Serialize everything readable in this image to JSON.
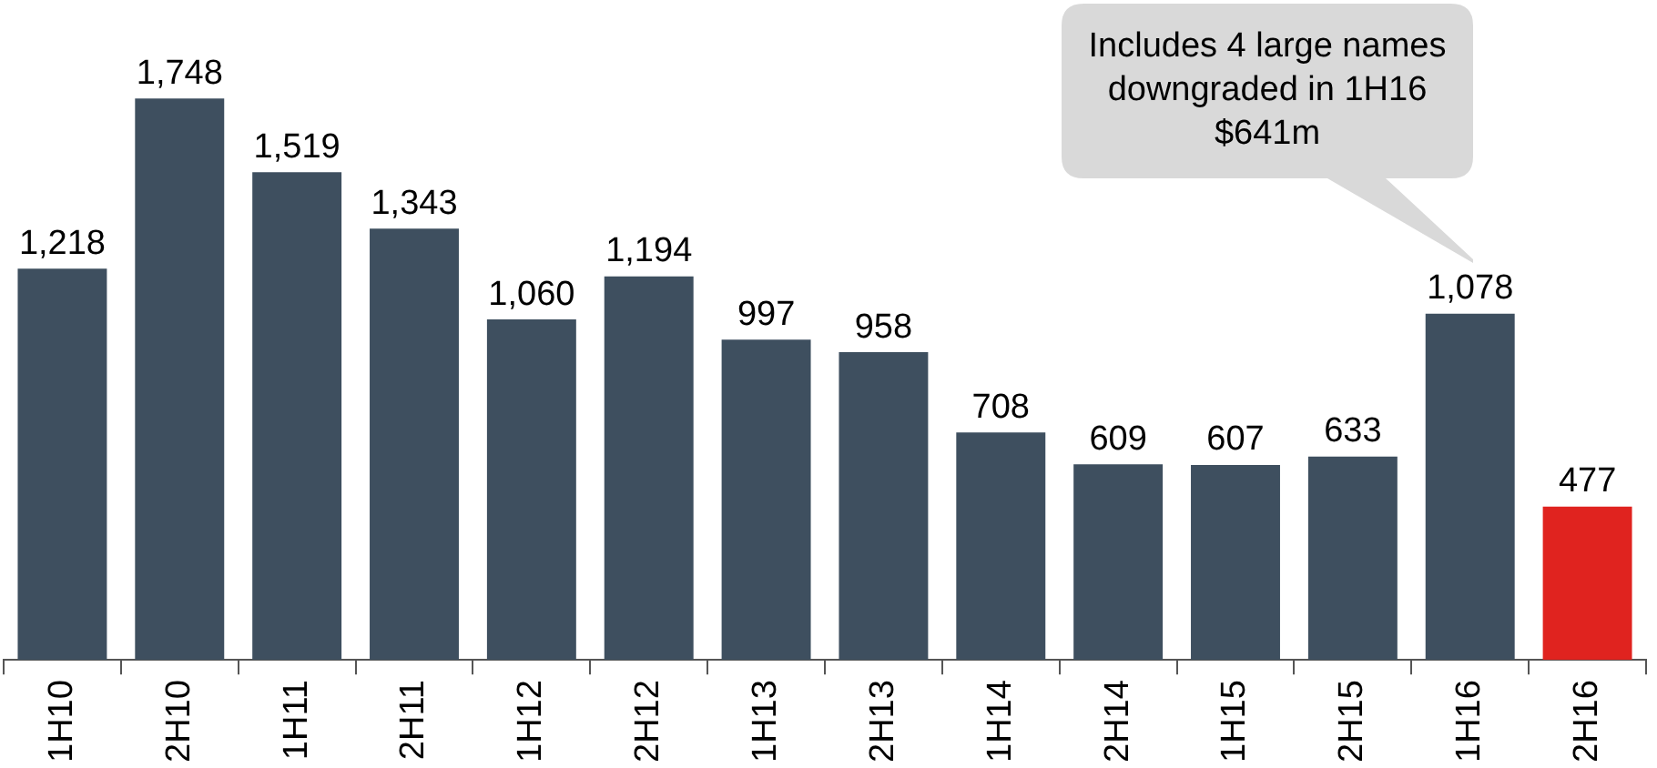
{
  "chart_data": {
    "type": "bar",
    "categories": [
      "1H10",
      "2H10",
      "1H11",
      "2H11",
      "1H12",
      "2H12",
      "1H13",
      "2H13",
      "1H14",
      "2H14",
      "1H15",
      "2H15",
      "1H16",
      "2H16"
    ],
    "values": [
      1218,
      1748,
      1519,
      1343,
      1060,
      1194,
      997,
      958,
      708,
      609,
      607,
      633,
      1078,
      477
    ],
    "colors": [
      "#3e4f5f",
      "#3e4f5f",
      "#3e4f5f",
      "#3e4f5f",
      "#3e4f5f",
      "#3e4f5f",
      "#3e4f5f",
      "#3e4f5f",
      "#3e4f5f",
      "#3e4f5f",
      "#3e4f5f",
      "#3e4f5f",
      "#3e4f5f",
      "#e0231f"
    ],
    "value_labels": [
      "1,218",
      "1,748",
      "1,519",
      "1,343",
      "1,060",
      "1,194",
      "997",
      "958",
      "708",
      "609",
      "607",
      "633",
      "1,078",
      "477"
    ],
    "grid": false,
    "legend": false,
    "annotations": [
      "Includes 4 large names downgraded in 1H16 $641m"
    ]
  }
}
